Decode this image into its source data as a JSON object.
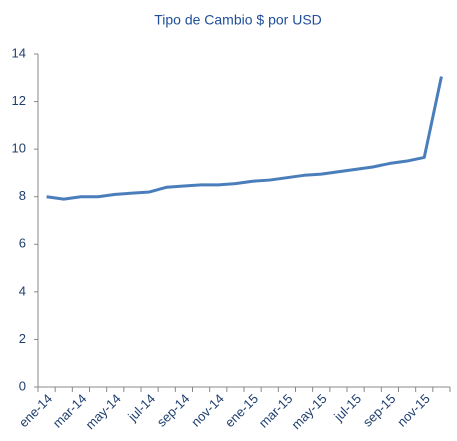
{
  "chart_data": {
    "type": "line",
    "title": "Tipo de Cambio $ por USD",
    "categories": [
      "ene-14",
      null,
      "mar-14",
      null,
      "may-14",
      null,
      "jul-14",
      null,
      "sep-14",
      null,
      "nov-14",
      null,
      "ene-15",
      null,
      "mar-15",
      null,
      "may-15",
      null,
      "jul-15",
      null,
      "sep-15",
      null,
      "nov-15",
      null
    ],
    "series": [
      {
        "name": "USD",
        "color": "#4a7ebb",
        "values": [
          8.0,
          7.9,
          8.0,
          8.0,
          8.1,
          8.15,
          8.2,
          8.4,
          8.45,
          8.5,
          8.5,
          8.55,
          8.65,
          8.7,
          8.8,
          8.9,
          8.95,
          9.05,
          9.15,
          9.25,
          9.4,
          9.5,
          9.65,
          13.05
        ]
      }
    ],
    "ylim": [
      0,
      14
    ],
    "yticks": [
      0,
      2,
      4,
      6,
      8,
      10,
      12,
      14
    ]
  }
}
